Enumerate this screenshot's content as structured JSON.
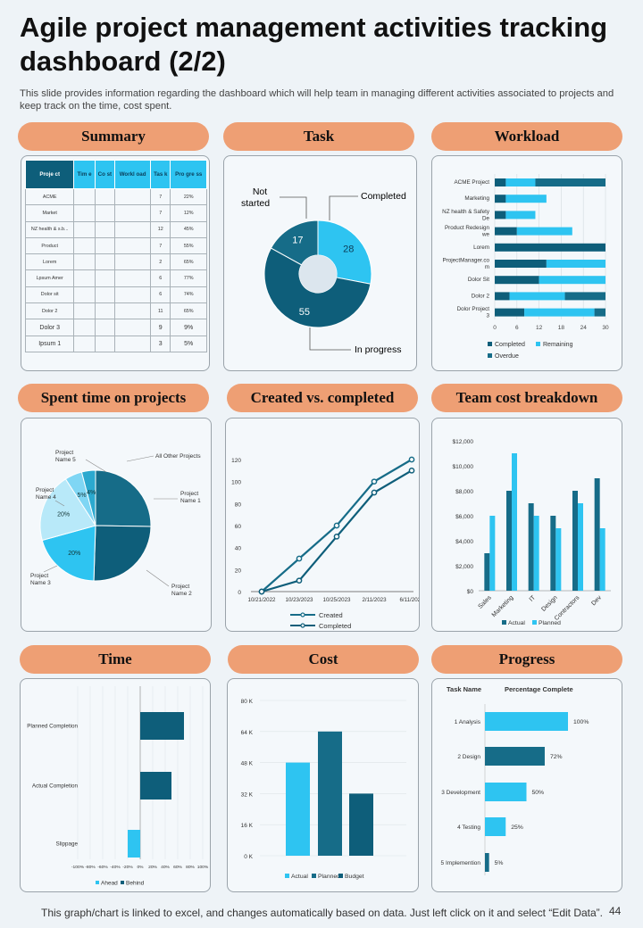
{
  "header": {
    "title": "Agile project management activities tracking dashboard (2/2)",
    "subtitle": "This slide provides information regarding the dashboard which will help team in managing different activities associated to projects and keep track on the time, cost spent."
  },
  "sections": {
    "summary": "Summary",
    "task": "Task",
    "workload": "Workload",
    "spent": "Spent time on projects",
    "created": "Created vs. completed",
    "teamcost": "Team cost breakdown",
    "time": "Time",
    "cost": "Cost",
    "progress": "Progress"
  },
  "summary_table": {
    "headers": [
      "Proje ct",
      "Tim e",
      "Co st",
      "Workl oad",
      "Tas k",
      "Pro gre ss"
    ],
    "rows": [
      [
        "ACME",
        "",
        "",
        "",
        "7",
        "22%"
      ],
      [
        "Market",
        "",
        "",
        "",
        "7",
        "12%"
      ],
      [
        "NZ health & s.b...",
        "",
        "",
        "",
        "12",
        "45%"
      ],
      [
        "Product",
        "",
        "",
        "",
        "7",
        "55%"
      ],
      [
        "Lorem",
        "",
        "",
        "",
        "2",
        "65%"
      ],
      [
        "Lpsum Amer",
        "",
        "",
        "",
        "6",
        "77%"
      ],
      [
        "Dolor sit",
        "",
        "",
        "",
        "6",
        "74%"
      ],
      [
        "Dolor 2",
        "",
        "",
        "",
        "11",
        "65%"
      ],
      [
        "Dolor 3",
        "",
        "",
        "",
        "9",
        "9%"
      ],
      [
        "Ipsum 1",
        "",
        "",
        "",
        "3",
        "5%"
      ]
    ]
  },
  "footer": {
    "note": "This graph/chart is linked to excel, and changes automatically based on data. Just left click on it and select “Edit Data”.",
    "page": "44"
  },
  "colors": {
    "dark": "#0e5e7a",
    "mid": "#166c88",
    "light": "#2ec4f1",
    "pale": "#a9e3f7",
    "accent": "#ee9f74"
  },
  "chart_data": [
    {
      "id": "task",
      "type": "pie",
      "labels": [
        "Not started",
        "Completed",
        "In progress"
      ],
      "values": [
        17,
        28,
        55
      ]
    },
    {
      "id": "workload",
      "type": "bar",
      "orientation": "horizontal",
      "stacked": true,
      "categories": [
        "ACME Project",
        "Marketing",
        "NZ health & Safety De",
        "Product Redesign we",
        "Lorem",
        "ProjectManager.co m",
        "Dolor Sit",
        "Dolor 2",
        "Dolor Project 3"
      ],
      "series": [
        {
          "name": "Completed",
          "values": [
            3,
            3,
            3,
            6,
            30,
            14,
            12,
            4,
            8
          ]
        },
        {
          "name": "Remaining",
          "values": [
            8,
            11,
            8,
            15,
            0,
            16,
            18,
            15,
            19
          ]
        },
        {
          "name": "Overdue",
          "values": [
            19,
            0,
            0,
            0,
            0,
            0,
            0,
            11,
            3
          ]
        }
      ],
      "xticks": [
        "0",
        "6",
        "12",
        "18",
        "24",
        "30"
      ],
      "xlim": [
        0,
        30
      ],
      "legend": "bottom"
    },
    {
      "id": "spent",
      "type": "pie",
      "labels": [
        "Project Name 1",
        "Project Name 2",
        "Project Name 3",
        "Project Name 4",
        "Project Name 5",
        "All Other Projects"
      ],
      "values": [
        25,
        25,
        20,
        20,
        5,
        4
      ],
      "data_labels": [
        "",
        "",
        "20%",
        "20%",
        "5%",
        "4%"
      ]
    },
    {
      "id": "created",
      "type": "line",
      "x": [
        "10/21/2022",
        "10/23/2023",
        "10/25/2023",
        "2/11/2023",
        "6/11/2023"
      ],
      "xticks": [
        "10/21/2022",
        "10/23/2023",
        "10/25/2023",
        "2/11/2023",
        "6/11/2023"
      ],
      "series": [
        {
          "name": "Created",
          "values": [
            0,
            30,
            60,
            100,
            120
          ]
        },
        {
          "name": "Completed",
          "values": [
            0,
            10,
            50,
            90,
            110
          ]
        }
      ],
      "yticks": [
        "0",
        "20",
        "40",
        "60",
        "80",
        "100",
        "120"
      ],
      "ylim": [
        0,
        120
      ],
      "legend": "bottom"
    },
    {
      "id": "teamcost",
      "type": "bar",
      "categories": [
        "Sales",
        "Marketing",
        "IT",
        "Design",
        "Contractors",
        "Dev"
      ],
      "series": [
        {
          "name": "Actual",
          "values": [
            3000,
            8000,
            7000,
            6000,
            8000,
            9000
          ]
        },
        {
          "name": "Planned",
          "values": [
            6000,
            11000,
            6000,
            5000,
            7000,
            5000
          ]
        }
      ],
      "yticks": [
        "$0",
        "$2,000",
        "$4,000",
        "$6,000",
        "$8,000",
        "$10,000",
        "$12,000"
      ],
      "ylim": [
        0,
        12000
      ],
      "legend": "bottom"
    },
    {
      "id": "time",
      "type": "bar",
      "orientation": "horizontal",
      "categories": [
        "Planned Completion",
        "Actual Completion",
        "Slippage"
      ],
      "series": [
        {
          "name": "Ahead",
          "values": [
            0,
            0,
            -20
          ]
        },
        {
          "name": "Behind",
          "values": [
            70,
            50,
            0
          ]
        }
      ],
      "xticks": [
        "-100%",
        "-80%",
        "-60%",
        "-40%",
        "-20%",
        "0%",
        "20%",
        "40%",
        "60%",
        "80%",
        "100%"
      ],
      "xlim": [
        -100,
        100
      ],
      "legend": "bottom"
    },
    {
      "id": "cost",
      "type": "bar",
      "categories": [
        "Actual",
        "Planned",
        "Budget"
      ],
      "values": [
        48,
        64,
        32
      ],
      "legend_labels": [
        "Actual",
        "Planned",
        "Budget"
      ],
      "yticks": [
        "0 K",
        "16 K",
        "32 K",
        "48 K",
        "64 K",
        "80 K"
      ],
      "ylim": [
        0,
        80
      ],
      "legend": "bottom"
    },
    {
      "id": "progress",
      "type": "bar",
      "orientation": "horizontal",
      "header": [
        "Task Name",
        "Percentage Complete"
      ],
      "categories": [
        "1 Analysis",
        "2 Design",
        "3 Development",
        "4 Testing",
        "5 Implemention"
      ],
      "values": [
        100,
        72,
        50,
        25,
        5
      ],
      "data_labels": [
        "100%",
        "72%",
        "50%",
        "25%",
        "5%"
      ]
    }
  ]
}
